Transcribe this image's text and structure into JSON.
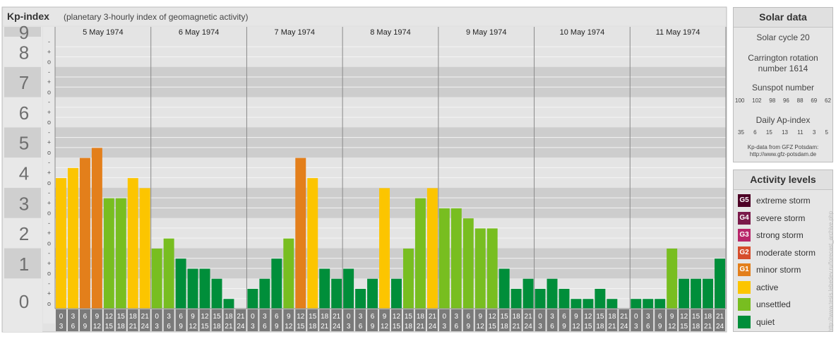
{
  "title": "Kp-index",
  "subtitle": "(planetary 3-hourly index of geomagnetic activity)",
  "chart_data": {
    "type": "bar",
    "title": "Kp-index",
    "subtitle": "(planetary 3-hourly index of geomagnetic activity)",
    "ylim": [
      0,
      9
    ],
    "y_ticks": [
      "0",
      "1",
      "2",
      "3",
      "4",
      "5",
      "6",
      "7",
      "8",
      "9"
    ],
    "minor_tick_marks": [
      "o",
      "+",
      "-"
    ],
    "days": [
      "5 May 1974",
      "6 May 1974",
      "7 May 1974",
      "8 May 1974",
      "9 May 1974",
      "10 May 1974",
      "11 May 1974"
    ],
    "interval_labels": [
      [
        "0",
        "3"
      ],
      [
        "3",
        "6"
      ],
      [
        "6",
        "9"
      ],
      [
        "9",
        "12"
      ],
      [
        "12",
        "15"
      ],
      [
        "15",
        "18"
      ],
      [
        "18",
        "21"
      ],
      [
        "21",
        "24"
      ]
    ],
    "values": [
      [
        4.333,
        4.667,
        5.0,
        5.333,
        3.667,
        3.667,
        4.333,
        4.0
      ],
      [
        2.0,
        2.333,
        1.667,
        1.333,
        1.333,
        1.0,
        0.333,
        0.0
      ],
      [
        0.667,
        1.0,
        1.667,
        2.333,
        5.0,
        4.333,
        1.333,
        1.0
      ],
      [
        1.333,
        0.667,
        1.0,
        4.0,
        1.0,
        2.0,
        3.667,
        4.0
      ],
      [
        3.333,
        3.333,
        3.0,
        2.667,
        2.667,
        1.333,
        0.667,
        1.0
      ],
      [
        0.667,
        1.0,
        0.667,
        0.333,
        0.333,
        0.667,
        0.333,
        0.0
      ],
      [
        0.333,
        0.333,
        0.333,
        2.0,
        1.0,
        1.0,
        1.0,
        1.667
      ]
    ],
    "colors": {
      "quiet": "#008e3a",
      "unsettled": "#78be20",
      "active": "#fcc500",
      "G1": "#e37f1b",
      "G2": "#d64d2c",
      "G3": "#b8266a",
      "G4": "#7a1a4a",
      "G5": "#4d0025"
    }
  },
  "solar": {
    "title": "Solar data",
    "cycle": "Solar cycle 20",
    "carrington1": "Carrington rotation",
    "carrington2": "number 1614",
    "sunspot_label": "Sunspot number",
    "sunspots": [
      "100",
      "102",
      "98",
      "96",
      "88",
      "69",
      "62"
    ],
    "ap_label": "Daily Ap-index",
    "ap": [
      "35",
      "6",
      "15",
      "13",
      "11",
      "3",
      "5"
    ],
    "source1": "Kp-data from GFZ Potsdam:",
    "source2": "http://www.gfz-potsdam.de"
  },
  "legend": {
    "title": "Activity levels",
    "items": [
      {
        "code": "G5",
        "label": "extreme storm",
        "color": "#4d0025"
      },
      {
        "code": "G4",
        "label": "severe storm",
        "color": "#7a1a4a"
      },
      {
        "code": "G3",
        "label": "strong storm",
        "color": "#b8266a"
      },
      {
        "code": "G2",
        "label": "moderate storm",
        "color": "#d64d2c"
      },
      {
        "code": "G1",
        "label": "minor storm",
        "color": "#e37f1b"
      },
      {
        "code": "",
        "label": "active",
        "color": "#fcc500"
      },
      {
        "code": "",
        "label": "unsettled",
        "color": "#78be20"
      },
      {
        "code": "",
        "label": "quiet",
        "color": "#008e3a"
      }
    ]
  },
  "watermark": "http://www.tesis.lebedev.ru/forecast_archive.php"
}
